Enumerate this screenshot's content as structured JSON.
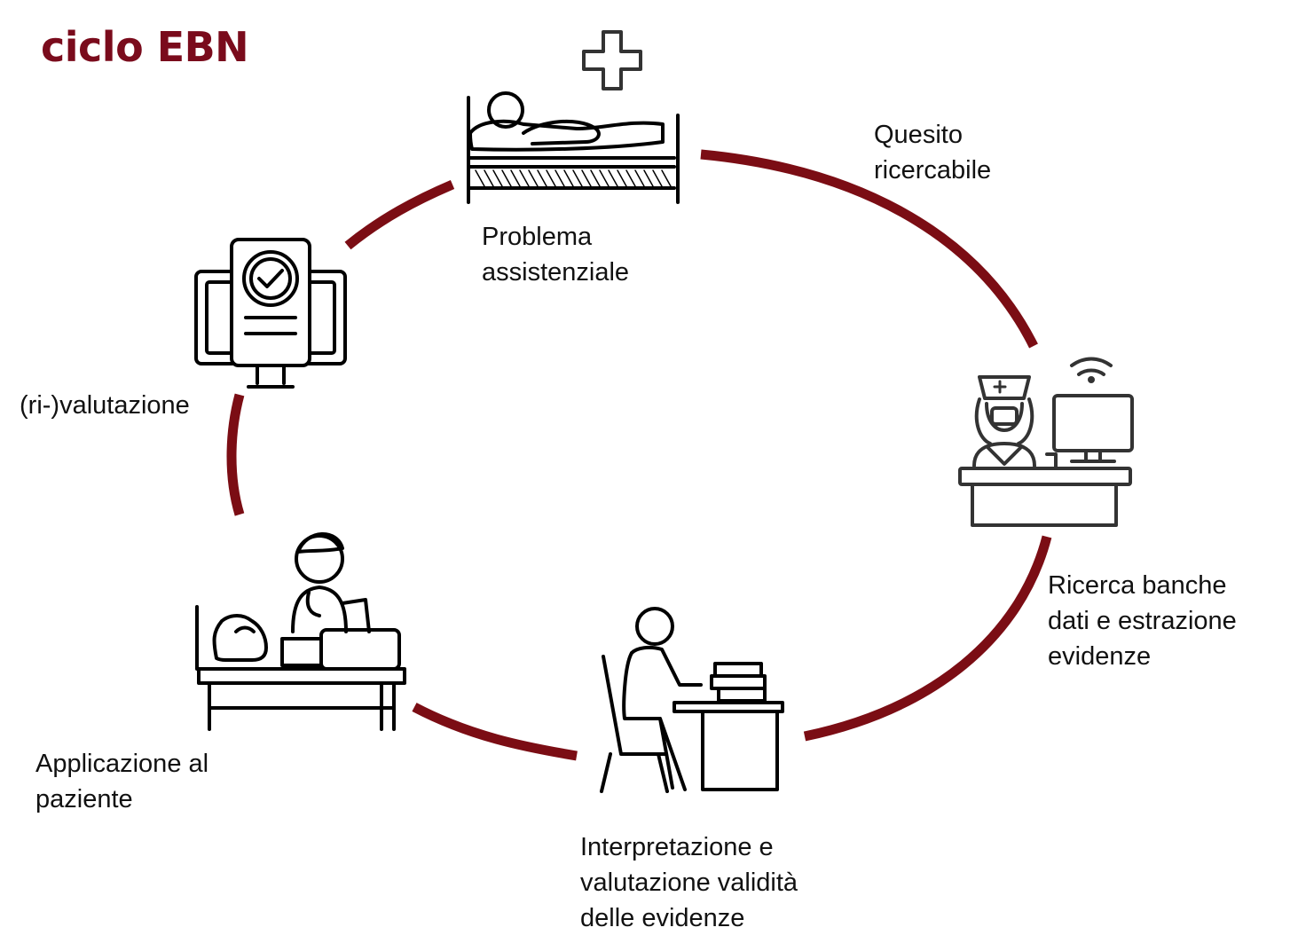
{
  "title": "ciclo EBN",
  "cycle_color": "#7b0d14",
  "steps": [
    {
      "id": "problem",
      "icon": "patient-bed-icon",
      "lines": [
        "Problema",
        "assistenziale"
      ]
    },
    {
      "id": "question",
      "lines": [
        "Quesito",
        "ricercabile"
      ]
    },
    {
      "id": "search",
      "icon": "nurse-computer-icon",
      "lines": [
        "Ricerca banche",
        "dati e estrazione",
        "evidenze"
      ]
    },
    {
      "id": "interpret",
      "icon": "person-reading-desk-icon",
      "lines": [
        "Interpretazione e",
        "valutazione validità",
        "delle evidenze"
      ]
    },
    {
      "id": "apply",
      "icon": "doctor-patient-desk-icon",
      "lines": [
        "Applicazione al",
        "paziente"
      ]
    },
    {
      "id": "evaluate",
      "icon": "monitor-checklist-icon",
      "lines": [
        "(ri-)valutazione"
      ]
    }
  ]
}
